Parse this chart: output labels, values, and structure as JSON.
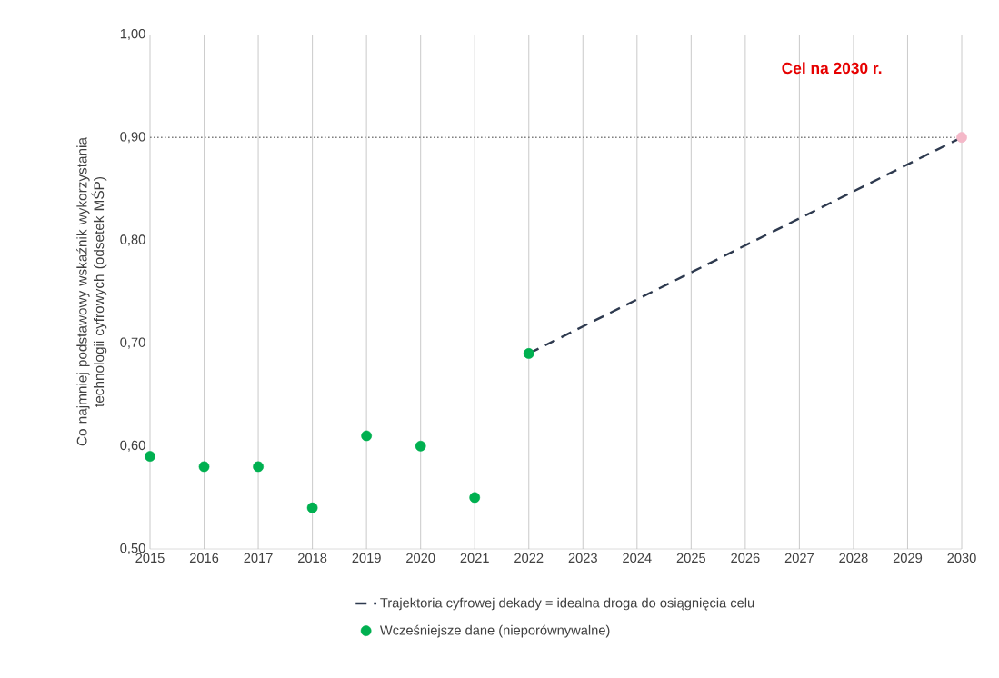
{
  "chart_data": {
    "type": "scatter",
    "ylabel": "Co najmniej podstawowy wskaźnik wykorzystania technologii cyfrowych (odsetek MŚP)",
    "annotations": [
      "Cel na 2030 r."
    ],
    "xlim": [
      2015,
      2030
    ],
    "xticks": [
      2015,
      2016,
      2017,
      2018,
      2019,
      2020,
      2021,
      2022,
      2023,
      2024,
      2025,
      2026,
      2027,
      2028,
      2029,
      2030
    ],
    "ylim": [
      0.5,
      1.0
    ],
    "yticks": [
      {
        "value": 0.5,
        "label": "0,50"
      },
      {
        "value": 0.6,
        "label": "0,60"
      },
      {
        "value": 0.7,
        "label": "0,70"
      },
      {
        "value": 0.8,
        "label": "0,80"
      },
      {
        "value": 0.9,
        "label": "0,90"
      },
      {
        "value": 1.0,
        "label": "1,00"
      }
    ],
    "grid": "x",
    "legend": "bottom",
    "ref_lines": [
      {
        "axis": "y",
        "value": 0.9,
        "color": "#808080",
        "line_style": "dotted"
      }
    ],
    "series": [
      {
        "type": "line",
        "name": "Trajektoria cyfrowej dekady = idealna droga do osiągnięcia celu",
        "color": "#2e3a4f",
        "line_style": "dashed",
        "marker": "none",
        "x": [
          2022,
          2030
        ],
        "values": [
          0.69,
          0.9
        ]
      },
      {
        "name": "Wcześniejsze dane (nieporównywalne)",
        "color": "#00b050",
        "marker": "circle",
        "x": [
          2015,
          2016,
          2017,
          2018,
          2019,
          2020,
          2021,
          2022
        ],
        "values": [
          0.59,
          0.58,
          0.58,
          0.54,
          0.61,
          0.6,
          0.55,
          0.69
        ]
      },
      {
        "color": "#f4b8c8",
        "marker": "circle",
        "x": [
          2030
        ],
        "values": [
          0.9
        ]
      }
    ]
  }
}
